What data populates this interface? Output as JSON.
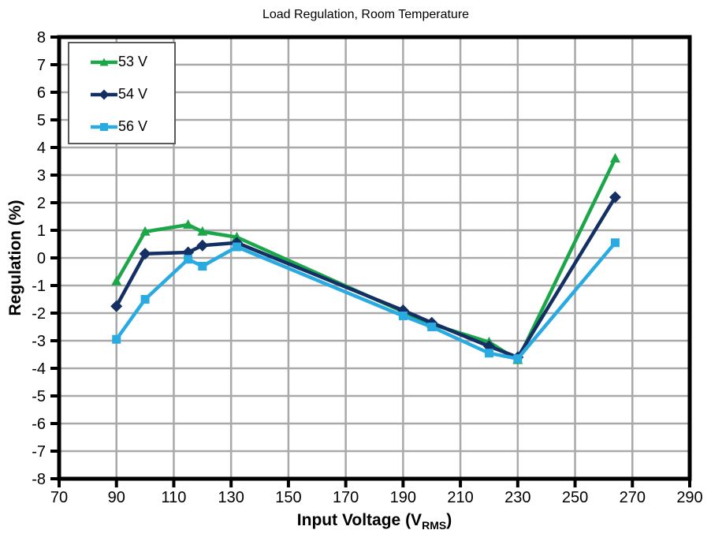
{
  "page": {
    "background": "#FFFFFF"
  },
  "chart_data": {
    "type": "line",
    "title": "Load Regulation, Room Temperature",
    "ylabel": "Regulation (%)",
    "xlabel": {
      "main": "Input Voltage (V",
      "sub": "RMS",
      "end": ")"
    },
    "xlim": [
      70,
      290
    ],
    "ylim": [
      -8,
      8
    ],
    "x_ticks": [
      70,
      90,
      110,
      130,
      150,
      170,
      190,
      210,
      230,
      250,
      270,
      290
    ],
    "y_ticks": [
      -8,
      -7,
      -6,
      -5,
      -4,
      -3,
      -2,
      -1,
      0,
      1,
      2,
      3,
      4,
      5,
      6,
      7,
      8
    ],
    "grid": true,
    "legend_position": "top-left",
    "x": [
      90,
      100,
      115,
      120,
      132,
      190,
      200,
      220,
      230,
      264
    ],
    "series": [
      {
        "name": "53 V",
        "color": "#1CA64A",
        "marker": "triangle",
        "values": [
          -0.85,
          0.95,
          1.2,
          0.95,
          0.75,
          -1.95,
          -2.4,
          -3.05,
          -3.7,
          3.6
        ]
      },
      {
        "name": "54 V",
        "color": "#132F63",
        "marker": "diamond",
        "values": [
          -1.75,
          0.15,
          0.2,
          0.45,
          0.55,
          -1.9,
          -2.35,
          -3.2,
          -3.6,
          2.2
        ]
      },
      {
        "name": "56 V",
        "color": "#29ABE2",
        "marker": "square",
        "values": [
          -2.95,
          -1.5,
          -0.05,
          -0.3,
          0.4,
          -2.1,
          -2.5,
          -3.45,
          -3.65,
          0.55
        ]
      }
    ],
    "colors": {
      "grid": "#A9A9A9",
      "axis": "#000000",
      "text": "#000000"
    }
  }
}
